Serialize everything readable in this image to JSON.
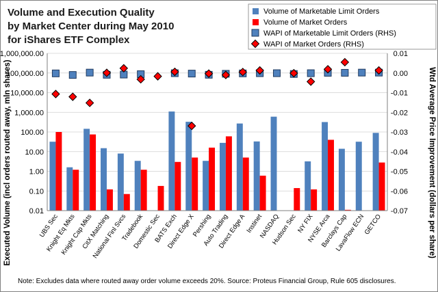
{
  "chart_data": {
    "type": "bar",
    "title_lines": [
      "Volume and Execution Quality",
      "by Market Center during May 2010",
      "for iShares ETF Complex"
    ],
    "ylabel": "Executed Volume (incl orders routed away, mln shares)",
    "y2label": "Wtd Average Price Improvement (dollars per share)",
    "yscale": "log",
    "ylim": [
      0.01,
      1000000
    ],
    "y_ticks": [
      "0.01",
      "0.10",
      "1.00",
      "10.00",
      "100.00",
      "1,000.00",
      "10,000.00",
      "100,000.00",
      "1,000,000.00"
    ],
    "y2lim": [
      -0.07,
      0.01
    ],
    "y2_ticks": [
      "0.01",
      "0.00",
      "-0.01",
      "-0.02",
      "-0.03",
      "-0.04",
      "-0.05",
      "-0.06",
      "-0.07"
    ],
    "legend_position": "top-right",
    "categories": [
      "UBS Sec",
      "Knight Eq Mkts",
      "Knight Cap Mkts",
      "CitX Matching",
      "National Finl Svcs",
      "Tradebook",
      "Domestic Sec",
      "BATS Exch",
      "Direct Edge X",
      "Pershing",
      "Auto Trading",
      "Direct Edge A",
      "Instinet",
      "NASDAQ",
      "Hudson Sec",
      "NY FIX",
      "NYSE Arca",
      "Barclays Cap",
      "LavaFlow ECN",
      "GETCO"
    ],
    "series": [
      {
        "name": "Volume of Marketable Limit Orders",
        "type": "bar",
        "axis": "left",
        "color": "#4F81BD",
        "values": [
          32,
          1.6,
          145,
          15,
          8,
          3.4,
          null,
          1100,
          330,
          3.4,
          28,
          270,
          33,
          600,
          0.01,
          3.2,
          320,
          14,
          32,
          90
        ]
      },
      {
        "name": "Volume of Market Orders",
        "type": "bar",
        "axis": "left",
        "color": "#FF0000",
        "values": [
          100,
          1.2,
          75,
          0.12,
          0.07,
          1.2,
          0.18,
          3.0,
          5.0,
          16,
          60,
          5.0,
          0.6,
          null,
          0.14,
          0.12,
          40,
          0.011,
          null,
          2.8
        ]
      },
      {
        "name": "WAPI of Marketable Limit Orders (RHS)",
        "type": "marker-square",
        "axis": "right",
        "color": "#4F81BD",
        "values": [
          -0.0002,
          -0.001,
          0.0002,
          -0.0009,
          -0.0008,
          -0.0006,
          null,
          -0.0001,
          -0.0003,
          -0.0009,
          -0.0004,
          -0.0002,
          -0.0001,
          -0.0001,
          -0.0005,
          -0.0001,
          0.0001,
          0.0001,
          0.0002,
          0.0002
        ]
      },
      {
        "name": "WAPI of Market Orders (RHS)",
        "type": "marker-diamond",
        "axis": "right",
        "color": "#FF0000",
        "values": [
          -0.0107,
          -0.0121,
          -0.0152,
          0.0001,
          0.0024,
          -0.0032,
          -0.0017,
          0.0006,
          -0.0269,
          -0.0003,
          -0.001,
          0.0005,
          0.0013,
          null,
          -0.0001,
          -0.0044,
          0.0019,
          0.0055,
          null,
          0.0013
        ]
      }
    ],
    "note": "Note: Excludes data where routed away order volume exceeds 20%. Source: Proteus Financial Group, Rule 605 disclosures."
  }
}
